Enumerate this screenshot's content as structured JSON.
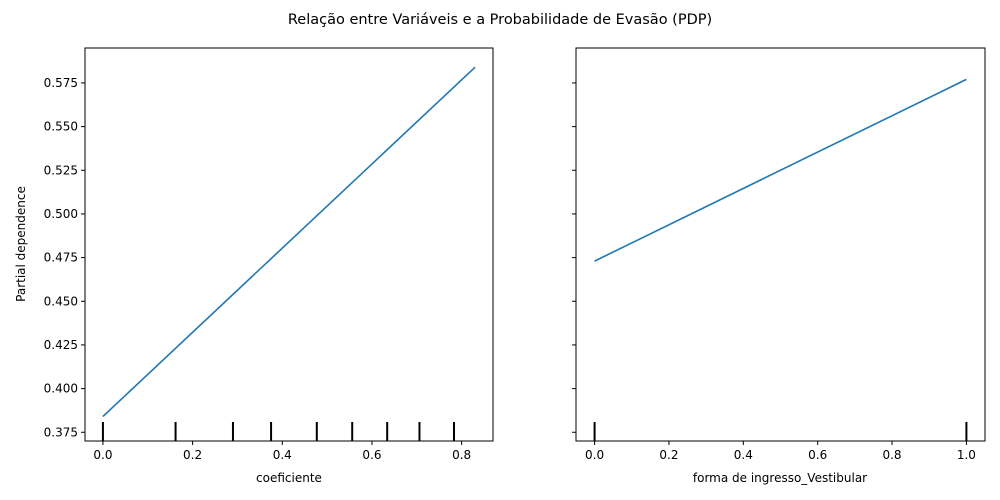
{
  "title": "Relação entre Variáveis e a Probabilidade de Evasão (PDP)",
  "chart_data": [
    {
      "type": "line",
      "xlabel": "coeficiente",
      "ylabel": "Partial dependence",
      "xlim": [
        -0.04,
        0.87
      ],
      "ylim": [
        0.37,
        0.595
      ],
      "xticks": [
        "0.0",
        "0.2",
        "0.4",
        "0.6",
        "0.8"
      ],
      "yticks": [
        "0.375",
        "0.400",
        "0.425",
        "0.450",
        "0.475",
        "0.500",
        "0.525",
        "0.550",
        "0.575"
      ],
      "series": [
        {
          "x": [
            0.0,
            0.83
          ],
          "y": [
            0.384,
            0.584
          ],
          "color": "#1f77b4"
        }
      ],
      "rug_x": [
        0.0,
        0.162,
        0.29,
        0.375,
        0.477,
        0.556,
        0.634,
        0.706,
        0.783
      ]
    },
    {
      "type": "line",
      "xlabel": "forma de ingresso_Vestibular",
      "ylabel": "",
      "xlim": [
        -0.05,
        1.05
      ],
      "ylim": [
        0.37,
        0.595
      ],
      "xticks": [
        "0.0",
        "0.2",
        "0.4",
        "0.6",
        "0.8",
        "1.0"
      ],
      "yticks": [],
      "series": [
        {
          "x": [
            0.0,
            1.0
          ],
          "y": [
            0.473,
            0.577
          ],
          "color": "#1f77b4"
        }
      ],
      "rug_x": [
        0.0,
        1.0
      ]
    }
  ]
}
